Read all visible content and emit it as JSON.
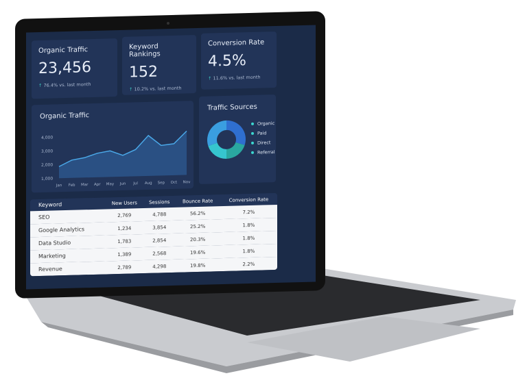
{
  "cards": [
    {
      "title": "Organic Traffic",
      "value": "23,456",
      "change": "76.4% vs. last month"
    },
    {
      "title": "Keyword Rankings",
      "value": "152",
      "change": "10.2% vs. last month"
    },
    {
      "title": "Conversion Rate",
      "value": "4.5%",
      "change": "11.6% vs. last month"
    }
  ],
  "chart_data": {
    "type": "area",
    "title": "Organic Traffic",
    "categories": [
      "Jan",
      "Feb",
      "Mar",
      "Apr",
      "May",
      "Jun",
      "Jul",
      "Aug",
      "Sep",
      "Oct",
      "Nov"
    ],
    "values": [
      1850,
      2300,
      2450,
      2750,
      2900,
      2550,
      2950,
      3950,
      3200,
      3300,
      4200
    ],
    "y_ticks": [
      "1,000",
      "2,000",
      "3,000",
      "4,000"
    ],
    "ylim": [
      1000,
      4500
    ],
    "color": "#4aa8e8"
  },
  "sources": {
    "title": "Traffic Sources",
    "items": [
      {
        "label": "Organic",
        "value": 30,
        "color": "#2f6fd0"
      },
      {
        "label": "Paid",
        "value": 20,
        "color": "#2aa7a0"
      },
      {
        "label": "Direct",
        "value": 20,
        "color": "#36c6cf"
      },
      {
        "label": "Referral",
        "value": 30,
        "color": "#3a9ee0"
      }
    ],
    "legend_dot": "#3cd6cf"
  },
  "table": {
    "headers": [
      "Keyword",
      "New Users",
      "Sessions",
      "Bounce Rate",
      "Conversion Rate"
    ],
    "rows": [
      [
        "SEO",
        "2,769",
        "4,788",
        "56.2%",
        "7.2%"
      ],
      [
        "Google Analytics",
        "1,234",
        "3,854",
        "25.2%",
        "1.8%"
      ],
      [
        "Data Studio",
        "1,783",
        "2,854",
        "20.3%",
        "1.8%"
      ],
      [
        "Marketing",
        "1,389",
        "2,568",
        "19.6%",
        "1.8%"
      ],
      [
        "Revenue",
        "2,789",
        "4,298",
        "19.8%",
        "2.2%"
      ]
    ]
  }
}
